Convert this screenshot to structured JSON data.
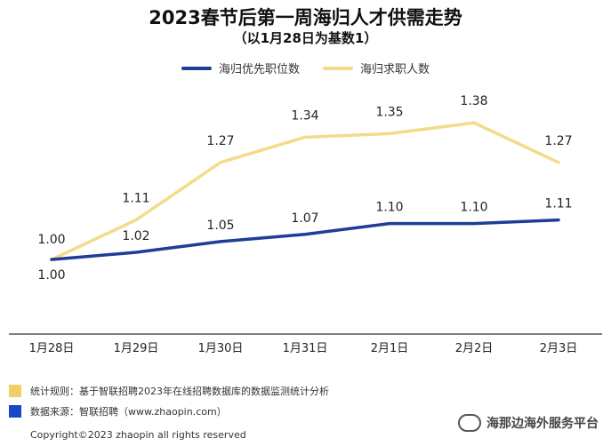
{
  "chart_data": {
    "type": "line",
    "title": "2023春节后第一周海归人才供需走势",
    "subtitle": "（以1月28日为基数1）",
    "categories": [
      "1月28日",
      "1月29日",
      "1月30日",
      "1月31日",
      "2月1日",
      "2月2日",
      "2月3日"
    ],
    "series": [
      {
        "name": "海归优先职位数",
        "color": "#1e3d96",
        "values": [
          1.0,
          1.02,
          1.05,
          1.07,
          1.1,
          1.1,
          1.11
        ],
        "labels": [
          "1.00",
          "1.02",
          "1.05",
          "1.07",
          "1.10",
          "1.10",
          "1.11"
        ]
      },
      {
        "name": "海归求职人数",
        "color": "#f2dc8a",
        "values": [
          1.0,
          1.11,
          1.27,
          1.34,
          1.35,
          1.38,
          1.27
        ],
        "labels": [
          "1.00",
          "1.11",
          "1.27",
          "1.34",
          "1.35",
          "1.38",
          "1.27"
        ]
      }
    ],
    "ylim": [
      0.82,
      1.43
    ],
    "grid": false,
    "legend": "top-center"
  },
  "notes": [
    {
      "color": "#f2cf64",
      "text": "统计规则：基于智联招聘2023年在线招聘数据库的数据监测统计分析"
    },
    {
      "color": "#1a47c8",
      "text": "数据来源：智联招聘（www.zhaopin.com）"
    }
  ],
  "copyright": "Copyright©2023 zhaopin all rights reserved",
  "watermark": "海那边海外服务平台"
}
